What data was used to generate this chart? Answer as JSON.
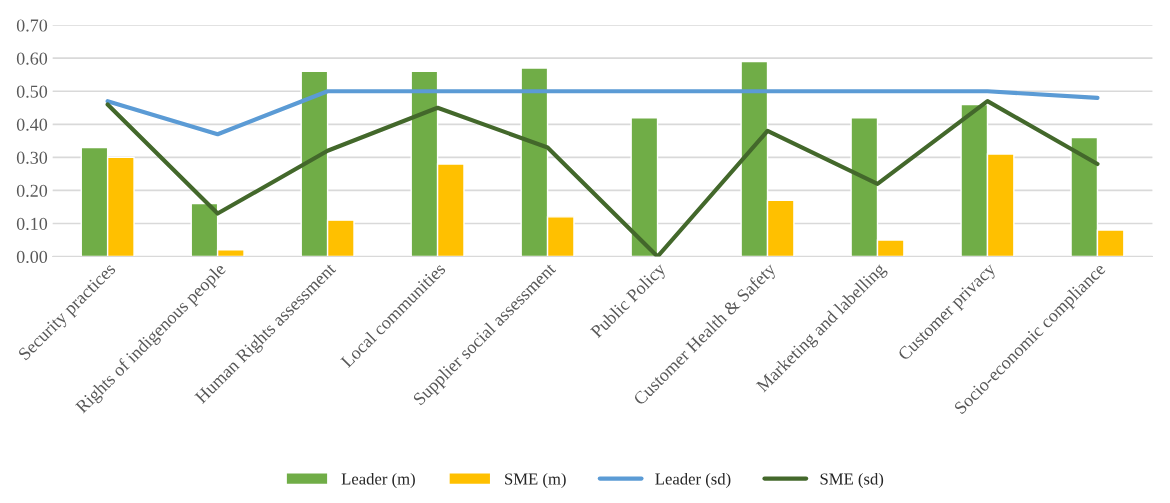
{
  "chart_data": {
    "type": "bar",
    "categories": [
      "Security practices",
      "Rights of indigenous people",
      "Human Rights assessment",
      "Local communities",
      "Supplier social assessment",
      "Public Policy",
      "Customer Health & Safety",
      "Marketing and labelling",
      "Customer privacy",
      "Socio-economic compliance"
    ],
    "series": [
      {
        "name": "Leader (m)",
        "color": "#70ad47",
        "values": [
          0.33,
          0.16,
          0.56,
          0.56,
          0.57,
          0.42,
          0.59,
          0.42,
          0.46,
          0.36
        ]
      },
      {
        "name": "SME (m)",
        "color": "#ffc000",
        "values": [
          0.3,
          0.02,
          0.11,
          0.28,
          0.12,
          null,
          0.17,
          0.05,
          0.31,
          0.08
        ]
      },
      {
        "name": "Leader (sd)",
        "type": "line",
        "color": "#5b9bd5",
        "values": [
          0.47,
          0.37,
          0.5,
          0.5,
          0.5,
          0.5,
          0.5,
          0.5,
          0.5,
          0.48
        ]
      },
      {
        "name": "SME (sd)",
        "type": "line",
        "color": "#43682b",
        "values": [
          0.46,
          0.13,
          0.32,
          0.45,
          0.33,
          0.0,
          0.38,
          0.22,
          0.47,
          0.28
        ]
      }
    ],
    "ylim": [
      0,
      0.7
    ],
    "yticks": [
      {
        "value": 0,
        "label": "0.00"
      },
      {
        "value": 0.1,
        "label": "0.10"
      },
      {
        "value": 0.2,
        "label": "0.20"
      },
      {
        "value": 0.3,
        "label": "0.30"
      },
      {
        "value": 0.4,
        "label": "0.40"
      },
      {
        "value": 0.5,
        "label": "0.50"
      },
      {
        "value": 0.6,
        "label": "0.60"
      },
      {
        "value": 0.7,
        "label": "0.70"
      }
    ],
    "grid": "y",
    "legend": "bottom",
    "marker": "none",
    "line_style": "solid"
  }
}
